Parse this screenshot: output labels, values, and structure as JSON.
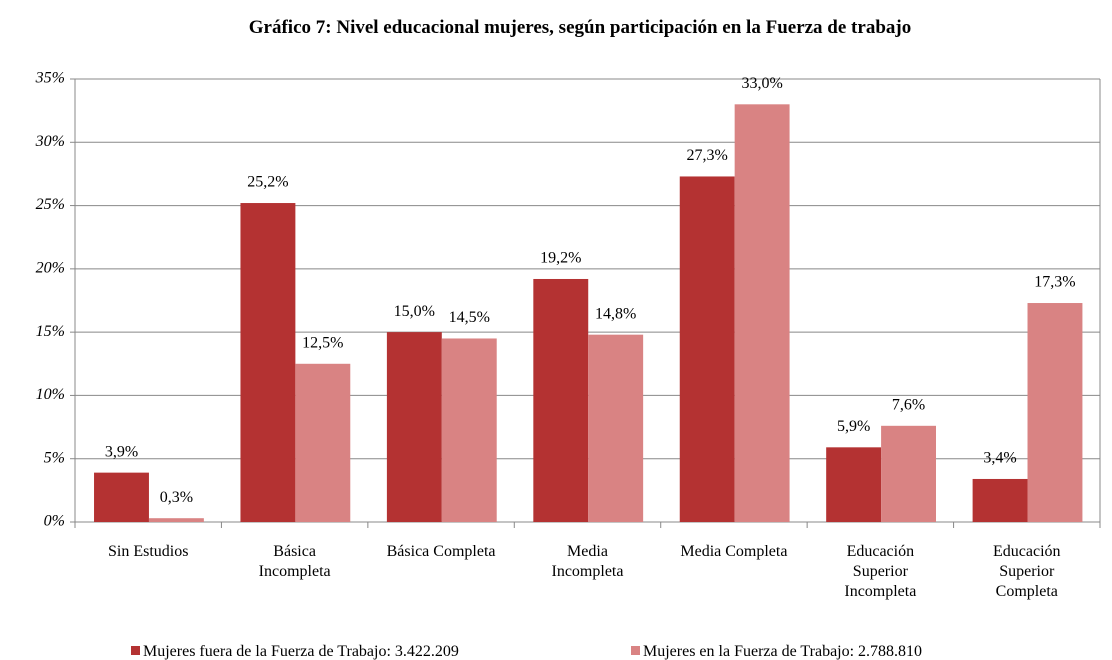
{
  "chart_data": {
    "type": "bar",
    "title": "Gráfico 7: Nivel educacional mujeres, según participación en la Fuerza de trabajo",
    "categories": [
      [
        "Sin Estudios"
      ],
      [
        "Básica",
        "Incompleta"
      ],
      [
        "Básica Completa"
      ],
      [
        "Media",
        "Incompleta"
      ],
      [
        "Media Completa"
      ],
      [
        "Educación",
        "Superior",
        "Incompleta"
      ],
      [
        "Educación",
        "Superior",
        "Completa"
      ]
    ],
    "series": [
      {
        "name": "Mujeres fuera de la Fuerza de Trabajo: 3.422.209",
        "color": "#b43232",
        "values": [
          3.9,
          25.2,
          15.0,
          19.2,
          27.3,
          5.9,
          3.4
        ],
        "value_labels": [
          "3,9%",
          "25,2%",
          "15,0%",
          "19,2%",
          "27,3%",
          "5,9%",
          "3,4%"
        ]
      },
      {
        "name": "Mujeres en la Fuerza de Trabajo: 2.788.810",
        "color": "#d98383",
        "values": [
          0.3,
          12.5,
          14.5,
          14.8,
          33.0,
          7.6,
          17.3
        ],
        "value_labels": [
          "0,3%",
          "12,5%",
          "14,5%",
          "14,8%",
          "33,0%",
          "7,6%",
          "17,3%"
        ]
      }
    ],
    "ylim": [
      0,
      35
    ],
    "yticks": [
      {
        "value": 0,
        "label": "0%"
      },
      {
        "value": 5,
        "label": "5%"
      },
      {
        "value": 10,
        "label": "10%"
      },
      {
        "value": 15,
        "label": "15%"
      },
      {
        "value": 20,
        "label": "20%"
      },
      {
        "value": 25,
        "label": "25%"
      },
      {
        "value": 30,
        "label": "30%"
      },
      {
        "value": 35,
        "label": "35%"
      }
    ],
    "grid": true
  }
}
